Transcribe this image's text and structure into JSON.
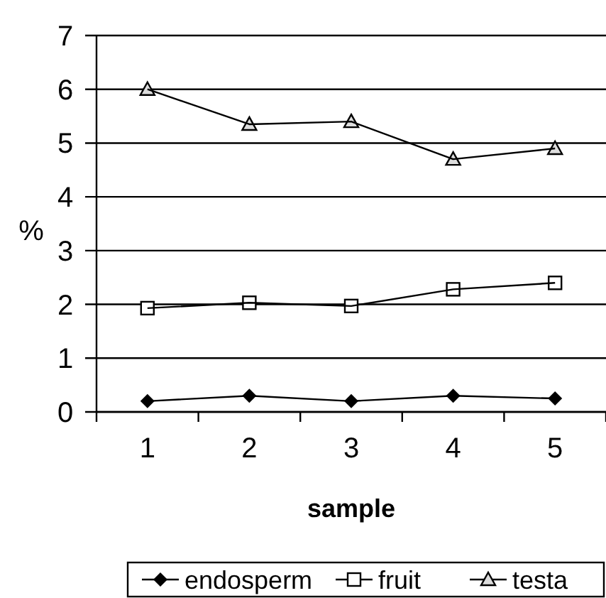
{
  "chart_data": {
    "type": "line",
    "xlabel": "sample",
    "ylabel": "%",
    "categories": [
      "1",
      "2",
      "3",
      "4",
      "5"
    ],
    "ylim": [
      0,
      7
    ],
    "yticks": [
      0,
      1,
      2,
      3,
      4,
      5,
      6,
      7
    ],
    "grid": "y",
    "legend": "bottom",
    "series": [
      {
        "name": "endosperm",
        "color": "#000000",
        "marker": "diamond",
        "values": [
          0.2,
          0.3,
          0.2,
          0.3,
          0.25
        ]
      },
      {
        "name": "fruit",
        "color": "#000000",
        "marker": "square",
        "values": [
          1.93,
          2.03,
          1.97,
          2.28,
          2.4
        ]
      },
      {
        "name": "testa",
        "color": "#000000",
        "marker": "triangle",
        "values": [
          6.0,
          5.35,
          5.4,
          4.7,
          4.9
        ]
      }
    ]
  }
}
